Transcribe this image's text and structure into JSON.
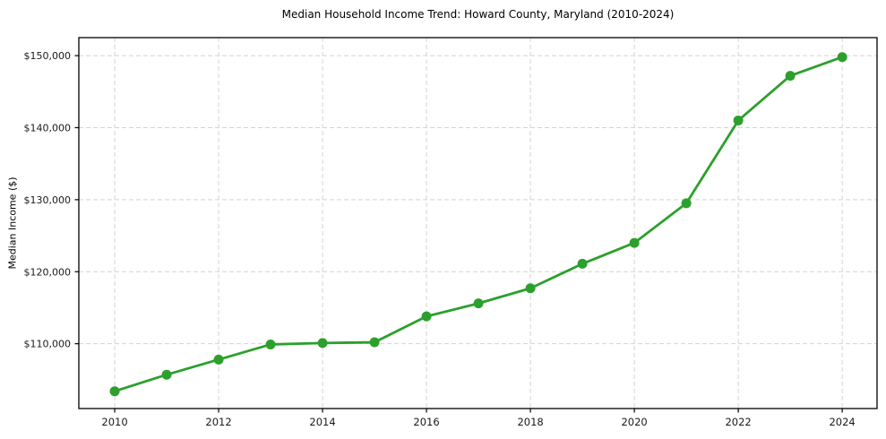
{
  "chart_data": {
    "type": "line",
    "title": "Median Household Income Trend: Howard County, Maryland (2010-2024)",
    "xlabel": "",
    "ylabel": "Median Income ($)",
    "x": [
      2010,
      2011,
      2012,
      2013,
      2014,
      2015,
      2016,
      2017,
      2018,
      2019,
      2020,
      2021,
      2022,
      2023,
      2024
    ],
    "values": [
      103400,
      105700,
      107800,
      109900,
      110100,
      110200,
      113800,
      115600,
      117700,
      121100,
      124000,
      129500,
      141000,
      147200,
      149800
    ],
    "xticks": [
      2010,
      2012,
      2014,
      2016,
      2018,
      2020,
      2022,
      2024
    ],
    "xtick_labels": [
      "2010",
      "2012",
      "2014",
      "2016",
      "2018",
      "2020",
      "2022",
      "2024"
    ],
    "yticks": [
      110000,
      120000,
      130000,
      140000,
      150000
    ],
    "ytick_labels": [
      "$110,000",
      "$120,000",
      "$130,000",
      "$140,000",
      "$150,000"
    ],
    "xlim": [
      2009.31,
      2024.67
    ],
    "ylim": [
      101000,
      152500
    ],
    "grid": true,
    "grid_style": "dashed",
    "legend": false,
    "line_color": "#2ca02c",
    "marker": "o",
    "grid_color": "#d4d4d4",
    "frame_color": "#000000",
    "background_color": "#ffffff"
  }
}
